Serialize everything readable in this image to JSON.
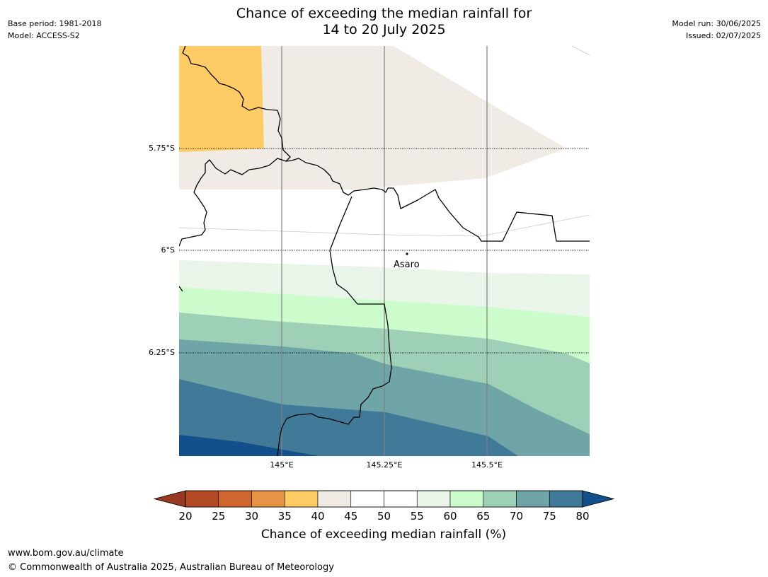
{
  "header": {
    "base_period": "Base period: 1981-2018",
    "model": "Model: ACCESS-S2",
    "title_line1": "Chance of exceeding the median rainfall for",
    "title_line2": "14 to 20 July 2025",
    "model_run": "Model run: 30/06/2025",
    "issued": "Issued: 02/07/2025"
  },
  "map": {
    "lat_labels": [
      "5.75°S",
      "6°S",
      "6.25°S"
    ],
    "lon_labels": [
      "145°E",
      "145.25°E",
      "145.5°E"
    ],
    "place_label": "Asaro",
    "region_colors": {
      "below_35_40": "#fecb64",
      "band_40_45": "#f0ebe5",
      "band_55_60": "#eaf5ea",
      "band_60_65": "#ccfccc",
      "band_65_70": "#9ed0b8",
      "band_70_75": "#70a5a8",
      "band_75_80": "#417a99",
      "above_80": "#134f8a"
    }
  },
  "colorbar": {
    "label": "Chance of exceeding median rainfall (%)",
    "ticks": [
      "20",
      "25",
      "30",
      "35",
      "40",
      "45",
      "50",
      "55",
      "60",
      "65",
      "70",
      "75",
      "80"
    ],
    "colors": [
      "#b24a26",
      "#cf662f",
      "#e49444",
      "#fecb64",
      "#f0ebe5",
      "#ffffff",
      "#ffffff",
      "#eaf5ea",
      "#ccfccc",
      "#9ed0b8",
      "#70a5a8",
      "#417a99"
    ],
    "under_color": "#993922",
    "over_color": "#134f8a"
  },
  "footer": {
    "url": "www.bom.gov.au/climate",
    "copyright": "© Commonwealth of Australia 2025, Australian Bureau of Meteorology"
  }
}
